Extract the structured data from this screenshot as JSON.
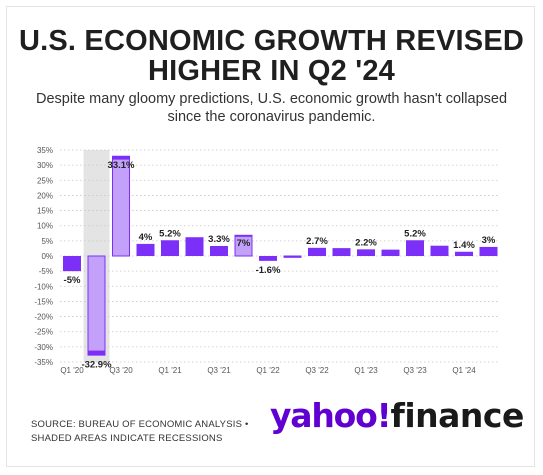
{
  "header": {
    "title_line1": "U.S. ECONOMIC GROWTH REVISED",
    "title_line2": "HIGHER IN Q2 '24",
    "subtitle_line1": "Despite many gloomy predictions, U.S. economic growth hasn't collapsed",
    "subtitle_line2": "since the coronavirus pandemic."
  },
  "footer": {
    "source_line1": "SOURCE: BUREAU OF ECONOMIC ANALYSIS •",
    "source_line2": "SHADED AREAS INDICATE RECESSIONS",
    "logo_main": "yahoo!",
    "logo_suffix": "finance"
  },
  "chart_data": {
    "type": "bar",
    "categories": [
      "Q1 '20",
      "Q2 '20",
      "Q3 '20",
      "Q4 '20",
      "Q1 '21",
      "Q2 '21",
      "Q3 '21",
      "Q4 '21",
      "Q1 '22",
      "Q2 '22",
      "Q3 '22",
      "Q4 '22",
      "Q1 '23",
      "Q2 '23",
      "Q3 '23",
      "Q4 '23",
      "Q1 '24",
      "Q2 '24"
    ],
    "values": [
      -5.0,
      -32.9,
      33.1,
      4.0,
      5.2,
      6.2,
      3.3,
      7.0,
      -1.6,
      -0.6,
      2.7,
      2.6,
      2.2,
      2.1,
      5.2,
      3.4,
      1.4,
      3.0
    ],
    "revised": {
      "Q2 '20": -31.4,
      "Q3 '20": 32.0,
      "Q4 '21": 6.5,
      "Q2 '22": -0.3
    },
    "data_labels": [
      {
        "index": 0,
        "text": "-5%"
      },
      {
        "index": 1,
        "text": "-32.9%"
      },
      {
        "index": 2,
        "text": "33.1%"
      },
      {
        "index": 3,
        "text": "4%"
      },
      {
        "index": 4,
        "text": "5.2%"
      },
      {
        "index": 6,
        "text": "3.3%"
      },
      {
        "index": 7,
        "text": "7%"
      },
      {
        "index": 8,
        "text": "-1.6%"
      },
      {
        "index": 10,
        "text": "2.7%"
      },
      {
        "index": 12,
        "text": "2.2%"
      },
      {
        "index": 14,
        "text": "5.2%"
      },
      {
        "index": 16,
        "text": "1.4%"
      },
      {
        "index": 17,
        "text": "3%"
      }
    ],
    "x_tick_labels": [
      {
        "index": 0,
        "text": "Q1 '20"
      },
      {
        "index": 2,
        "text": "Q3 '20"
      },
      {
        "index": 4,
        "text": "Q1 '21"
      },
      {
        "index": 6,
        "text": "Q3 '21"
      },
      {
        "index": 8,
        "text": "Q1 '22"
      },
      {
        "index": 10,
        "text": "Q3 '22"
      },
      {
        "index": 12,
        "text": "Q1 '23"
      },
      {
        "index": 14,
        "text": "Q3 '23"
      },
      {
        "index": 16,
        "text": "Q1 '24"
      }
    ],
    "yticks": [
      35,
      30,
      25,
      20,
      15,
      10,
      5,
      0,
      -5,
      -10,
      -15,
      -20,
      -25,
      -30,
      -35
    ],
    "ytick_labels": [
      "35%",
      "30%",
      "25%",
      "20%",
      "15%",
      "10%",
      "5%",
      "0%",
      "-5%",
      "-10%",
      "-15%",
      "-20%",
      "-25%",
      "-30%",
      "-35%"
    ],
    "ylim": [
      -35,
      35
    ],
    "recession_shading": {
      "from_index": 1,
      "to_index": 1
    },
    "grid": "horizontal-dotted",
    "colors": {
      "bar": "#7b2ff7",
      "revised_outline": "#7b2ff7",
      "shade": "#e4e4e4",
      "grid": "#c8c8c8"
    }
  }
}
